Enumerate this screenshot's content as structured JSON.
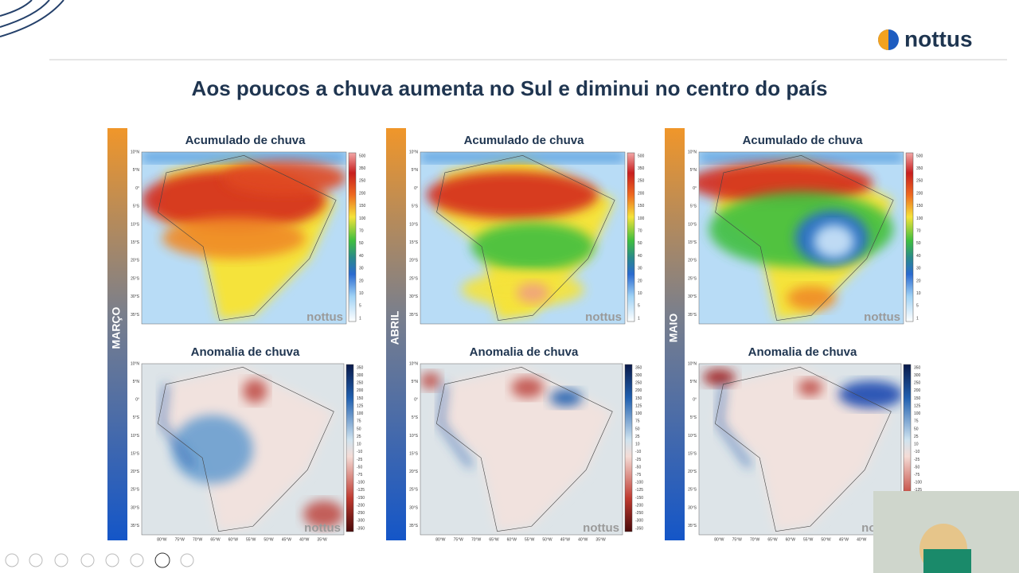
{
  "header": {
    "logo": "nottus",
    "title": "Aos poucos a chuva aumenta no Sul e diminui no centro do país"
  },
  "watermark": "nottus",
  "latitudes": [
    "10°N",
    "5°N",
    "0°",
    "5°S",
    "10°S",
    "15°S",
    "20°S",
    "25°S",
    "30°S",
    "35°S"
  ],
  "longitudes": [
    "80°W",
    "75°W",
    "70°W",
    "65°W",
    "60°W",
    "55°W",
    "50°W",
    "45°W",
    "40°W",
    "35°W"
  ],
  "legends": {
    "accumulated": [
      500,
      350,
      250,
      200,
      150,
      100,
      70,
      50,
      40,
      30,
      20,
      10,
      5,
      1
    ],
    "anomaly": [
      350,
      300,
      250,
      200,
      150,
      125,
      100,
      75,
      50,
      25,
      10,
      -10,
      -25,
      -50,
      -75,
      -100,
      -125,
      -150,
      -200,
      -250,
      -300,
      -350
    ]
  },
  "panels": [
    {
      "month": "MARÇO",
      "maps": [
        "Acumulado de chuva",
        "Anomalia de chuva"
      ]
    },
    {
      "month": "ABRIL",
      "maps": [
        "Acumulado de chuva",
        "Anomalia de chuva"
      ]
    },
    {
      "month": "MAIO",
      "maps": [
        "Acumulado de chuva",
        "Anomalia de chuva"
      ]
    }
  ]
}
